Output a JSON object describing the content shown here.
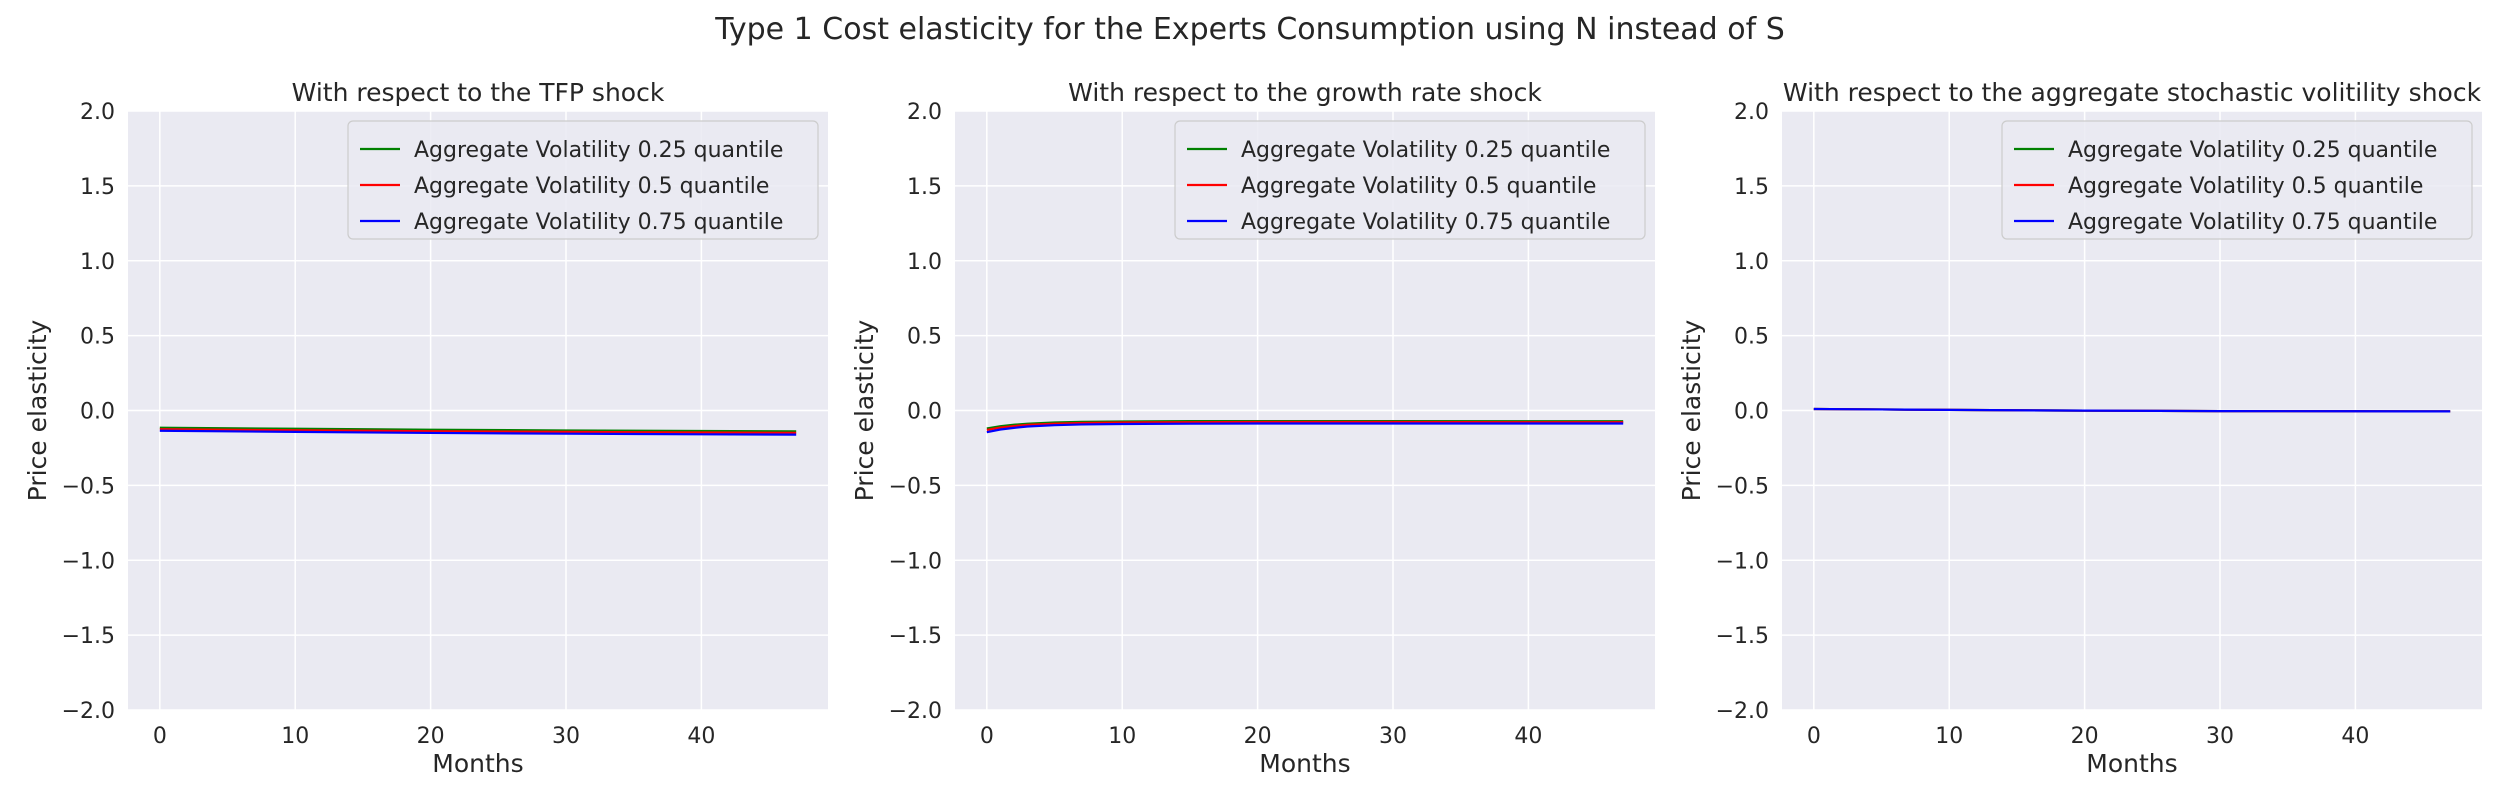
{
  "chart_data": {
    "title": "Type 1 Cost elasticity for the Experts Consumption using N instead of S",
    "panels": [
      {
        "type": "line",
        "title": "With respect to the TFP shock",
        "xlabel": "Months",
        "ylabel": "Price elasticity",
        "xlim": [
          -2.35,
          49.35
        ],
        "ylim": [
          -2.0,
          2.0
        ],
        "xticks": [
          0,
          10,
          20,
          30,
          40
        ],
        "yticks": [
          -2.0,
          -1.5,
          -1.0,
          -0.5,
          0.0,
          0.5,
          1.0,
          1.5,
          2.0
        ],
        "ytick_labels": [
          "−2.0",
          "−1.5",
          "−1.0",
          "−0.5",
          "0.0",
          "0.5",
          "1.0",
          "1.5",
          "2.0"
        ],
        "grid": true,
        "legend": "upper-right",
        "series": [
          {
            "name": "Aggregate Volatility 0.25 quantile",
            "color": "#008000",
            "x": [
              0,
              10,
              20,
              30,
              40,
              47
            ],
            "values": [
              -0.115,
              -0.122,
              -0.128,
              -0.133,
              -0.137,
              -0.139
            ]
          },
          {
            "name": "Aggregate Volatility 0.5 quantile",
            "color": "#ff0000",
            "x": [
              0,
              10,
              20,
              30,
              40,
              47
            ],
            "values": [
              -0.125,
              -0.132,
              -0.138,
              -0.143,
              -0.147,
              -0.149
            ]
          },
          {
            "name": "Aggregate Volatility 0.75 quantile",
            "color": "#0000ff",
            "x": [
              0,
              10,
              20,
              30,
              40,
              47
            ],
            "values": [
              -0.135,
              -0.143,
              -0.15,
              -0.155,
              -0.159,
              -0.161
            ]
          }
        ]
      },
      {
        "type": "line",
        "title": "With respect to the growth rate shock",
        "xlabel": "Months",
        "ylabel": "Price elasticity",
        "xlim": [
          -2.35,
          49.35
        ],
        "ylim": [
          -2.0,
          2.0
        ],
        "xticks": [
          0,
          10,
          20,
          30,
          40
        ],
        "yticks": [
          -2.0,
          -1.5,
          -1.0,
          -0.5,
          0.0,
          0.5,
          1.0,
          1.5,
          2.0
        ],
        "ytick_labels": [
          "−2.0",
          "−1.5",
          "−1.0",
          "−0.5",
          "0.0",
          "0.5",
          "1.0",
          "1.5",
          "2.0"
        ],
        "grid": true,
        "legend": "upper-right",
        "series": [
          {
            "name": "Aggregate Volatility 0.25 quantile",
            "color": "#008000",
            "x": [
              0,
              1,
              2,
              3,
              5,
              7,
              10,
              15,
              20,
              30,
              40,
              47
            ],
            "values": [
              -0.12,
              -0.105,
              -0.095,
              -0.088,
              -0.08,
              -0.076,
              -0.073,
              -0.071,
              -0.071,
              -0.071,
              -0.072,
              -0.072
            ]
          },
          {
            "name": "Aggregate Volatility 0.5 quantile",
            "color": "#ff0000",
            "x": [
              0,
              1,
              2,
              3,
              5,
              7,
              10,
              15,
              20,
              30,
              40,
              47
            ],
            "values": [
              -0.13,
              -0.114,
              -0.104,
              -0.096,
              -0.088,
              -0.083,
              -0.08,
              -0.078,
              -0.077,
              -0.077,
              -0.078,
              -0.078
            ]
          },
          {
            "name": "Aggregate Volatility 0.75 quantile",
            "color": "#0000ff",
            "x": [
              0,
              1,
              2,
              3,
              5,
              7,
              10,
              15,
              20,
              30,
              40,
              47
            ],
            "values": [
              -0.145,
              -0.127,
              -0.116,
              -0.107,
              -0.098,
              -0.093,
              -0.09,
              -0.088,
              -0.087,
              -0.087,
              -0.087,
              -0.087
            ]
          }
        ]
      },
      {
        "type": "line",
        "title": "With respect to the aggregate stochastic volitility shock",
        "xlabel": "Months",
        "ylabel": "Price elasticity",
        "xlim": [
          -2.35,
          49.35
        ],
        "ylim": [
          -2.0,
          2.0
        ],
        "xticks": [
          0,
          10,
          20,
          30,
          40
        ],
        "yticks": [
          -2.0,
          -1.5,
          -1.0,
          -0.5,
          0.0,
          0.5,
          1.0,
          1.5,
          2.0
        ],
        "ytick_labels": [
          "−2.0",
          "−1.5",
          "−1.0",
          "−0.5",
          "0.0",
          "0.5",
          "1.0",
          "1.5",
          "2.0"
        ],
        "grid": true,
        "legend": "upper-right",
        "series": [
          {
            "name": "Aggregate Volatility 0.25 quantile",
            "color": "#008000",
            "x": [
              0,
              5,
              10,
              20,
              30,
              40,
              47
            ],
            "values": [
              0.01,
              0.007,
              0.004,
              -0.001,
              -0.004,
              -0.005,
              -0.006
            ]
          },
          {
            "name": "Aggregate Volatility 0.5 quantile",
            "color": "#ff0000",
            "x": [
              0,
              5,
              10,
              20,
              30,
              40,
              47
            ],
            "values": [
              0.01,
              0.007,
              0.004,
              -0.001,
              -0.004,
              -0.005,
              -0.006
            ]
          },
          {
            "name": "Aggregate Volatility 0.75 quantile",
            "color": "#0000ff",
            "x": [
              0,
              5,
              10,
              20,
              30,
              40,
              47
            ],
            "values": [
              0.01,
              0.007,
              0.004,
              -0.001,
              -0.004,
              -0.005,
              -0.006
            ]
          }
        ]
      }
    ]
  }
}
